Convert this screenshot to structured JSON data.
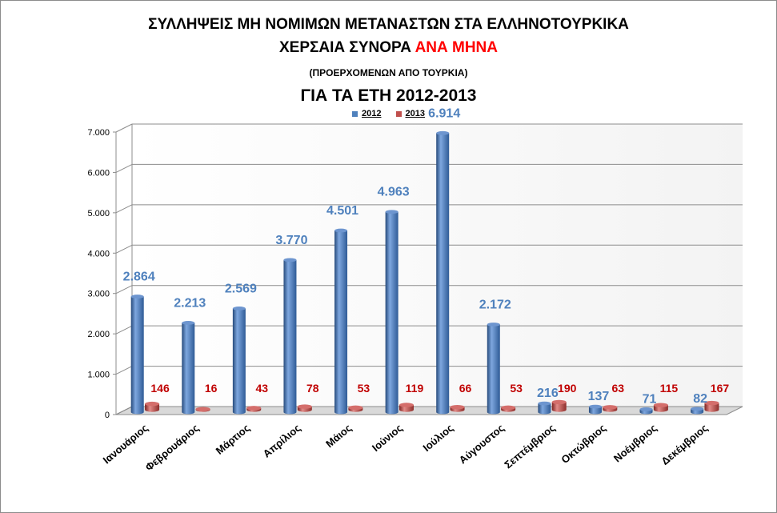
{
  "title_line1": "ΣΥΛΛΗΨΕΙΣ ΜΗ ΝΟΜΙΜΩΝ ΜΕΤΑΝΑΣΤΩΝ ΣΤΑ ΕΛΛΗΝΟΤΟΥΡΚΙΚΑ",
  "title_line2_part1": "ΧΕΡΣΑΙΑ ΣΥΝΟΡΑ",
  "title_line2_part2": "ΑΝΑ ΜΗΝΑ",
  "subtitle": "(ΠΡΟΕΡΧΟΜΕΝΩΝ ΑΠΟ ΤΟΥΡΚΙΑ)",
  "title_years": "ΓΙΑ ΤΑ ΕΤΗ 2012-2013",
  "colors": {
    "series_2012": "#4f81bd",
    "series_2013": "#c0504d",
    "label_2012": "#4f81bd",
    "label_2013": "#c00000",
    "title_accent": "#ff0000"
  },
  "chart_data": {
    "type": "bar",
    "categories": [
      "Ιανουάριος",
      "Φεβρουάριος",
      "Μάρτιος",
      "Απρίλιος",
      "Μάιος",
      "Ιούνιος",
      "Ιούλιος",
      "Αύγουστος",
      "Σεπτέμβριος",
      "Οκτώβριος",
      "Νοέμβριος",
      "Δεκέμβριος"
    ],
    "series": [
      {
        "name": "2012",
        "values": [
          2864,
          2213,
          2569,
          3770,
          4501,
          4963,
          6914,
          2172,
          216,
          137,
          71,
          82
        ],
        "labels": [
          "2.864",
          "2.213",
          "2.569",
          "3.770",
          "4.501",
          "4.963",
          "6.914",
          "2.172",
          "216",
          "137",
          "71",
          "82"
        ]
      },
      {
        "name": "2013",
        "values": [
          146,
          16,
          43,
          78,
          53,
          119,
          66,
          53,
          190,
          63,
          115,
          167
        ],
        "labels": [
          "146",
          "16",
          "43",
          "78",
          "53",
          "119",
          "66",
          "53",
          "190",
          "63",
          "115",
          "167"
        ]
      }
    ],
    "ylim": [
      0,
      7000
    ],
    "yticks": [
      0,
      1000,
      2000,
      3000,
      4000,
      5000,
      6000,
      7000
    ],
    "ytick_labels": [
      "0",
      "1.000",
      "2.000",
      "3.000",
      "4.000",
      "5.000",
      "6.000",
      "7.000"
    ],
    "grid": true,
    "legend_position": "top",
    "style": "3d-cylinder"
  }
}
